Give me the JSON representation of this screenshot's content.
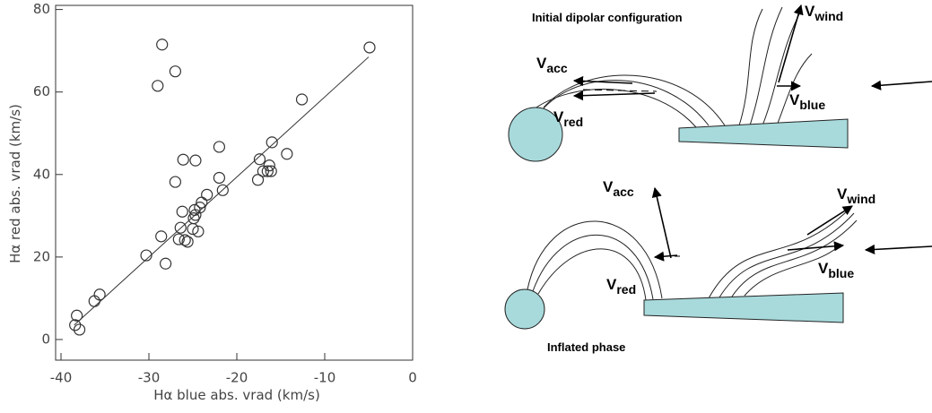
{
  "chart_data": {
    "type": "scatter",
    "xlabel": "Hα blue abs. vrad (km/s)",
    "ylabel": "Hα red abs. vrad (km/s)",
    "x": [
      -38.4,
      -38.2,
      -37.9,
      -36.2,
      -35.6,
      -30.3,
      -29.0,
      -28.5,
      -28.6,
      -28.1,
      -27.0,
      -27.0,
      -26.6,
      -26.4,
      -26.2,
      -26.1,
      -25.9,
      -25.6,
      -25.0,
      -24.9,
      -24.8,
      -24.7,
      -24.7,
      -24.4,
      -24.2,
      -24.0,
      -23.4,
      -22.0,
      -22.0,
      -21.6,
      -17.6,
      -17.4,
      -17.0,
      -16.5,
      -16.3,
      -16.1,
      -16.0,
      -14.3,
      -12.6,
      -4.9
    ],
    "values": [
      3.5,
      5.8,
      2.4,
      9.3,
      10.9,
      20.4,
      61.5,
      71.5,
      25.0,
      18.4,
      65.0,
      38.2,
      24.3,
      27.1,
      31.0,
      43.6,
      24.1,
      23.7,
      26.8,
      29.4,
      31.4,
      30.2,
      43.4,
      26.2,
      32.0,
      33.2,
      35.1,
      39.2,
      46.7,
      36.2,
      38.7,
      43.7,
      40.8,
      40.8,
      42.2,
      40.8,
      47.8,
      45.0,
      58.2,
      70.8
    ],
    "color": "#333333",
    "fit": {
      "x": [
        -38.5,
        -5
      ],
      "y": [
        3.5,
        68.5
      ]
    },
    "xlim": [
      -40,
      0
    ],
    "ylim": [
      -5,
      81
    ],
    "xticks": [
      -40,
      -30,
      -20,
      -10,
      0
    ],
    "yticks": [
      0,
      20,
      40,
      60,
      80
    ]
  },
  "diagram": {
    "top_title": "Initial dipolar configuration",
    "bottom_title": "Inflated phase",
    "top_labels": [
      {
        "main": "V",
        "sub": "acc"
      },
      {
        "main": "V",
        "sub": "red"
      },
      {
        "main": "V",
        "sub": "wind"
      },
      {
        "main": "V",
        "sub": "blue"
      }
    ],
    "bottom_labels": [
      {
        "main": "V",
        "sub": "acc"
      },
      {
        "main": "V",
        "sub": "red"
      },
      {
        "main": "V",
        "sub": "wind"
      },
      {
        "main": "V",
        "sub": "blue"
      }
    ]
  }
}
